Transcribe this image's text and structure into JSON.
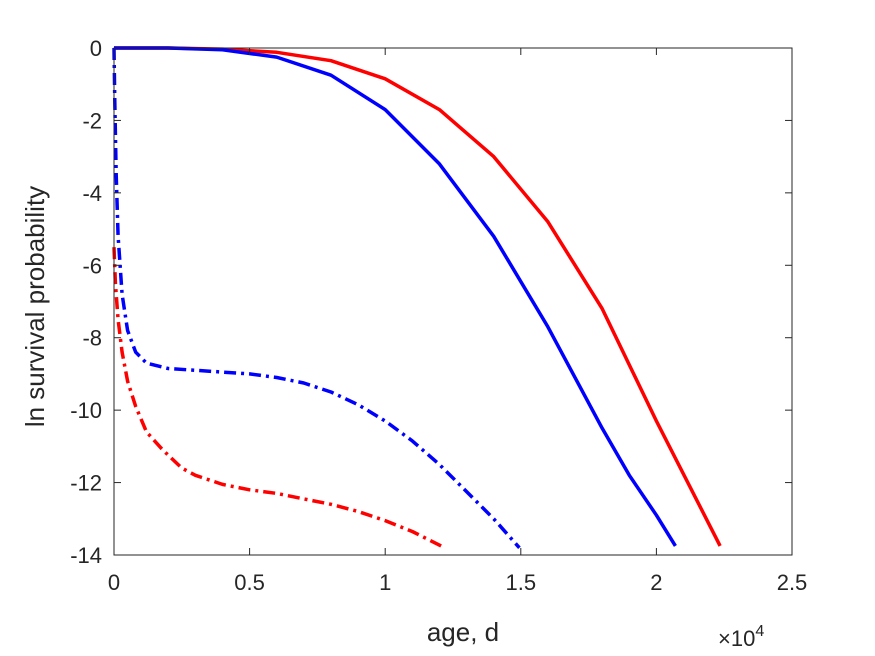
{
  "chart_data": {
    "type": "line",
    "title": "",
    "xlabel": "age, d",
    "ylabel": "ln survival probability",
    "x_exponent_label": "×10",
    "x_exponent_power": "4",
    "xlim": [
      0,
      25000
    ],
    "ylim": [
      -14,
      0
    ],
    "grid": false,
    "legend": "none",
    "x_ticks": [
      {
        "value": 0,
        "label": "0"
      },
      {
        "value": 5000,
        "label": "0.5"
      },
      {
        "value": 10000,
        "label": "1"
      },
      {
        "value": 15000,
        "label": "1.5"
      },
      {
        "value": 20000,
        "label": "2"
      },
      {
        "value": 25000,
        "label": "2.5"
      }
    ],
    "y_ticks": [
      {
        "value": 0,
        "label": "0"
      },
      {
        "value": -2,
        "label": "-2"
      },
      {
        "value": -4,
        "label": "-4"
      },
      {
        "value": -6,
        "label": "-6"
      },
      {
        "value": -8,
        "label": "-8"
      },
      {
        "value": -10,
        "label": "-10"
      },
      {
        "value": -12,
        "label": "-12"
      },
      {
        "value": -14,
        "label": "-14"
      }
    ],
    "series": [
      {
        "color": "#ff0000",
        "style": "solid",
        "x": [
          0,
          2000,
          4000,
          6000,
          8000,
          10000,
          12000,
          14000,
          16000,
          18000,
          20000,
          22350
        ],
        "y": [
          0,
          0,
          -0.03,
          -0.12,
          -0.35,
          -0.85,
          -1.7,
          -3.0,
          -4.8,
          -7.2,
          -10.3,
          -13.75
        ]
      },
      {
        "color": "#0000ff",
        "style": "solid",
        "x": [
          0,
          2000,
          4000,
          6000,
          8000,
          10000,
          12000,
          14000,
          16000,
          18000,
          19000,
          20000,
          20700
        ],
        "y": [
          0,
          0,
          -0.05,
          -0.25,
          -0.75,
          -1.7,
          -3.2,
          -5.2,
          -7.7,
          -10.5,
          -11.8,
          -12.9,
          -13.75
        ]
      },
      {
        "color": "#0000ff",
        "style": "dashdot",
        "x": [
          0,
          30,
          80,
          150,
          300,
          500,
          800,
          1200,
          2000,
          3000,
          4000,
          5000,
          6000,
          7000,
          8000,
          9000,
          10000,
          11000,
          12000,
          13000,
          14000,
          14950
        ],
        "y": [
          0,
          -1.5,
          -3.5,
          -5.2,
          -6.8,
          -7.8,
          -8.4,
          -8.7,
          -8.85,
          -8.9,
          -8.95,
          -9.0,
          -9.1,
          -9.25,
          -9.5,
          -9.85,
          -10.3,
          -10.85,
          -11.5,
          -12.25,
          -13.0,
          -13.8
        ]
      },
      {
        "color": "#ff0000",
        "style": "dashdot",
        "x": [
          0,
          50,
          150,
          300,
          500,
          800,
          1200,
          1800,
          2500,
          3000,
          4000,
          5000,
          6000,
          7000,
          8000,
          9000,
          10000,
          11000,
          12200
        ],
        "y": [
          -5.5,
          -6.5,
          -7.5,
          -8.4,
          -9.2,
          -9.9,
          -10.6,
          -11.1,
          -11.6,
          -11.8,
          -12.05,
          -12.2,
          -12.3,
          -12.45,
          -12.6,
          -12.8,
          -13.05,
          -13.35,
          -13.8
        ]
      }
    ]
  }
}
